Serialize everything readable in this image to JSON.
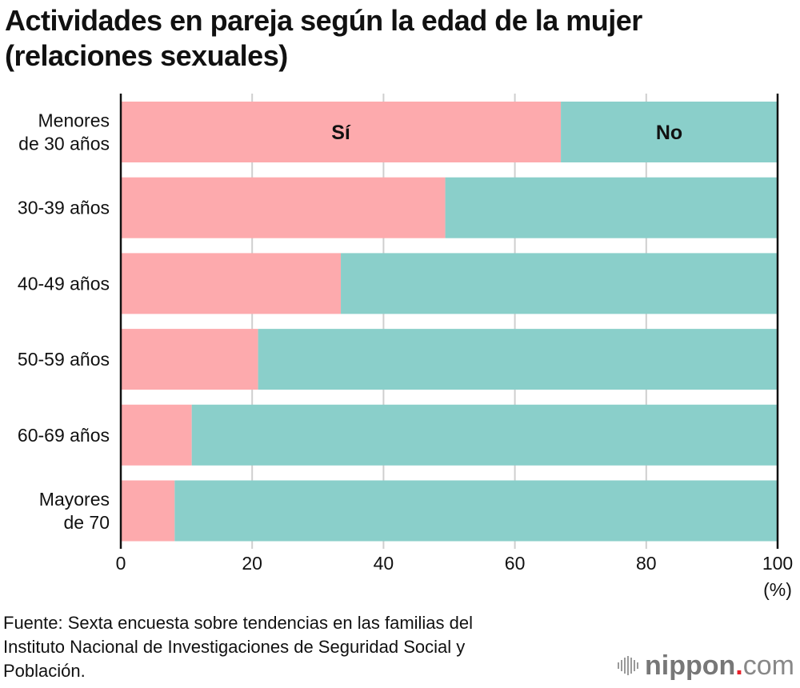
{
  "chart_data": {
    "type": "bar",
    "orientation": "horizontal",
    "stacked": true,
    "title": "Actividades en pareja según la edad de la mujer (relaciones sexuales)",
    "title_lines": [
      "Actividades en pareja según la edad de la mujer",
      "(relaciones sexuales)"
    ],
    "categories": [
      [
        "Menores",
        "de 30 años"
      ],
      [
        "30-39 años"
      ],
      [
        "40-49 años"
      ],
      [
        "50-59 años"
      ],
      [
        "60-69 años"
      ],
      [
        "Mayores",
        "de 70"
      ]
    ],
    "series": [
      {
        "name": "Sí",
        "color": "#fdaaad",
        "values": [
          67.0,
          49.4,
          33.5,
          20.9,
          10.8,
          8.2
        ]
      },
      {
        "name": "No",
        "color": "#8acfca",
        "values": [
          33.0,
          50.6,
          66.5,
          79.1,
          89.2,
          91.8
        ]
      }
    ],
    "xlabel": "",
    "x_unit_label": "(%)",
    "xlim": [
      0,
      100
    ],
    "xticks": [
      0,
      20,
      40,
      60,
      80,
      100
    ],
    "grid": true,
    "legend": "inline labels on first bar"
  },
  "source": {
    "lines": [
      "Fuente: Sexta encuesta sobre tendencias en las familias del",
      "Instituto Nacional de Investigaciones de Seguridad Social y",
      "Población."
    ]
  },
  "logo": {
    "name": "nippon",
    "dot": ".",
    "tld": "com"
  }
}
